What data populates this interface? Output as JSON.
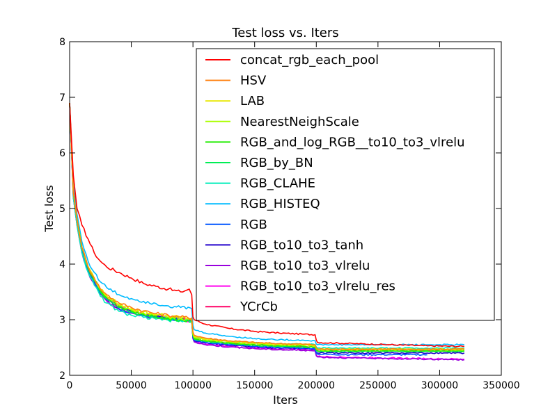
{
  "chart_data": {
    "type": "line",
    "title": "Test loss  vs. Iters",
    "xlabel": "Iters",
    "ylabel": "Test loss",
    "xlim": [
      0,
      350000
    ],
    "ylim": [
      2,
      8
    ],
    "xticks": [
      0,
      50000,
      100000,
      150000,
      200000,
      250000,
      300000,
      350000
    ],
    "yticks": [
      2,
      3,
      4,
      5,
      6,
      7,
      8
    ],
    "grid": false,
    "legend_position": "upper-right",
    "series": [
      {
        "name": "concat_rgb_each_pool",
        "color": "#ff0000",
        "x": [
          0,
          3000,
          6000,
          10000,
          15000,
          20000,
          25000,
          30000,
          40000,
          50000,
          60000,
          70000,
          80000,
          90000,
          97000,
          99000,
          100000,
          101000,
          110000,
          130000,
          150000,
          170000,
          190000,
          199000,
          200000,
          201000,
          230000,
          260000,
          290000,
          320000
        ],
        "y": [
          6.9,
          5.6,
          5.0,
          4.7,
          4.45,
          4.2,
          4.05,
          3.95,
          3.85,
          3.75,
          3.65,
          3.6,
          3.55,
          3.5,
          3.55,
          3.45,
          3.05,
          3.0,
          2.92,
          2.84,
          2.79,
          2.76,
          2.74,
          2.73,
          2.63,
          2.59,
          2.57,
          2.55,
          2.53,
          2.52
        ]
      },
      {
        "name": "HSV",
        "color": "#ff7f0e",
        "x": [
          0,
          3000,
          6000,
          10000,
          15000,
          20000,
          25000,
          30000,
          40000,
          50000,
          60000,
          70000,
          80000,
          90000,
          99000,
          100000,
          101000,
          110000,
          130000,
          150000,
          170000,
          190000,
          199000,
          200000,
          201000,
          230000,
          260000,
          290000,
          320000
        ],
        "y": [
          6.9,
          5.3,
          4.8,
          4.3,
          3.95,
          3.75,
          3.55,
          3.45,
          3.3,
          3.22,
          3.16,
          3.11,
          3.08,
          3.05,
          3.03,
          2.78,
          2.72,
          2.67,
          2.62,
          2.59,
          2.57,
          2.56,
          2.55,
          2.49,
          2.47,
          2.47,
          2.47,
          2.47,
          2.47
        ]
      },
      {
        "name": "LAB",
        "color": "#e8e800",
        "x": [
          0,
          3000,
          6000,
          10000,
          15000,
          20000,
          25000,
          30000,
          40000,
          50000,
          60000,
          70000,
          80000,
          90000,
          99000,
          100000,
          101000,
          110000,
          130000,
          150000,
          170000,
          190000,
          199000,
          200000,
          201000,
          230000,
          260000,
          290000,
          320000
        ],
        "y": [
          6.9,
          5.3,
          4.8,
          4.3,
          3.95,
          3.75,
          3.55,
          3.43,
          3.28,
          3.2,
          3.14,
          3.1,
          3.07,
          3.04,
          3.02,
          2.76,
          2.7,
          2.65,
          2.61,
          2.58,
          2.56,
          2.55,
          2.54,
          2.49,
          2.47,
          2.47,
          2.47,
          2.47,
          2.47
        ]
      },
      {
        "name": "NearestNeighScale",
        "color": "#aaff00",
        "x": [
          0,
          3000,
          6000,
          10000,
          15000,
          20000,
          25000,
          30000,
          40000,
          50000,
          60000,
          70000,
          80000,
          90000,
          99000,
          100000,
          101000,
          110000,
          130000,
          150000,
          170000,
          190000,
          199000,
          200000,
          201000,
          230000,
          260000,
          290000,
          320000
        ],
        "y": [
          6.9,
          5.3,
          4.8,
          4.3,
          3.95,
          3.74,
          3.54,
          3.42,
          3.26,
          3.18,
          3.12,
          3.08,
          3.05,
          3.02,
          3.0,
          2.74,
          2.68,
          2.64,
          2.6,
          2.57,
          2.55,
          2.54,
          2.53,
          2.48,
          2.46,
          2.46,
          2.46,
          2.46,
          2.46
        ]
      },
      {
        "name": "RGB_and_log_RGB__to10_to3_vlrelu",
        "color": "#22ee00",
        "x": [
          0,
          3000,
          6000,
          10000,
          15000,
          20000,
          25000,
          30000,
          40000,
          50000,
          60000,
          70000,
          80000,
          90000,
          99000,
          100000,
          101000,
          110000,
          130000,
          150000,
          170000,
          190000,
          199000,
          200000,
          201000,
          230000,
          260000,
          290000,
          320000
        ],
        "y": [
          6.9,
          5.3,
          4.8,
          4.3,
          3.93,
          3.72,
          3.52,
          3.4,
          3.24,
          3.16,
          3.1,
          3.06,
          3.03,
          3.0,
          2.98,
          2.72,
          2.66,
          2.62,
          2.58,
          2.55,
          2.53,
          2.52,
          2.51,
          2.46,
          2.44,
          2.44,
          2.44,
          2.44,
          2.44
        ]
      },
      {
        "name": "RGB_by_BN",
        "color": "#00ee55",
        "x": [
          0,
          3000,
          6000,
          10000,
          15000,
          20000,
          25000,
          30000,
          40000,
          50000,
          60000,
          70000,
          80000,
          90000,
          99000,
          100000,
          101000,
          110000,
          130000,
          150000,
          170000,
          190000,
          199000,
          200000,
          201000,
          230000,
          260000,
          290000,
          320000
        ],
        "y": [
          6.9,
          5.3,
          4.8,
          4.3,
          3.92,
          3.7,
          3.5,
          3.38,
          3.22,
          3.14,
          3.08,
          3.04,
          3.01,
          2.99,
          2.97,
          2.71,
          2.65,
          2.61,
          2.57,
          2.54,
          2.52,
          2.51,
          2.5,
          2.45,
          2.43,
          2.43,
          2.43,
          2.43,
          2.43
        ]
      },
      {
        "name": "RGB_CLAHE",
        "color": "#00eebb",
        "x": [
          0,
          3000,
          6000,
          10000,
          15000,
          20000,
          25000,
          30000,
          40000,
          50000,
          60000,
          70000,
          80000,
          90000,
          99000,
          100000,
          101000,
          110000,
          130000,
          150000,
          170000,
          190000,
          199000,
          200000,
          201000,
          230000,
          260000,
          290000,
          320000
        ],
        "y": [
          6.9,
          5.2,
          4.7,
          4.2,
          3.85,
          3.62,
          3.42,
          3.3,
          3.15,
          3.08,
          3.04,
          3.01,
          2.99,
          2.98,
          2.97,
          2.75,
          2.69,
          2.65,
          2.61,
          2.58,
          2.57,
          2.56,
          2.55,
          2.51,
          2.49,
          2.49,
          2.49,
          2.49,
          2.49
        ]
      },
      {
        "name": "RGB_HISTEQ",
        "color": "#00bbff",
        "x": [
          0,
          3000,
          6000,
          10000,
          15000,
          20000,
          25000,
          30000,
          40000,
          50000,
          60000,
          70000,
          80000,
          90000,
          99000,
          100000,
          101000,
          110000,
          130000,
          150000,
          170000,
          190000,
          199000,
          200000,
          201000,
          230000,
          260000,
          290000,
          320000
        ],
        "y": [
          6.9,
          5.4,
          4.9,
          4.4,
          4.05,
          3.85,
          3.68,
          3.58,
          3.45,
          3.38,
          3.33,
          3.29,
          3.25,
          3.22,
          3.2,
          2.9,
          2.82,
          2.76,
          2.7,
          2.66,
          2.64,
          2.63,
          2.62,
          2.56,
          2.55,
          2.55,
          2.55,
          2.55,
          2.55
        ]
      },
      {
        "name": "RGB",
        "color": "#0055ff",
        "x": [
          0,
          3000,
          6000,
          10000,
          15000,
          20000,
          25000,
          30000,
          40000,
          50000,
          60000,
          70000,
          80000,
          90000,
          99000,
          100000,
          101000,
          110000,
          130000,
          150000,
          170000,
          190000,
          199000,
          200000,
          201000,
          230000,
          260000,
          290000
        ],
        "y": [
          6.9,
          5.25,
          4.75,
          4.25,
          3.88,
          3.66,
          3.48,
          3.36,
          3.2,
          3.13,
          3.08,
          3.05,
          3.02,
          3.0,
          2.98,
          2.68,
          2.63,
          2.59,
          2.55,
          2.52,
          2.5,
          2.49,
          2.48,
          2.4,
          2.38,
          2.37,
          2.37,
          2.37
        ]
      },
      {
        "name": "RGB_to10_to3_tanh",
        "color": "#2200cc",
        "x": [
          0,
          3000,
          6000,
          10000,
          15000,
          20000,
          25000,
          30000,
          40000,
          50000,
          60000,
          70000,
          80000,
          90000,
          99000,
          100000,
          101000,
          110000,
          130000,
          150000,
          170000,
          190000,
          199000,
          200000,
          201000,
          230000,
          260000,
          290000,
          320000
        ],
        "y": [
          6.9,
          5.25,
          4.75,
          4.25,
          3.9,
          3.68,
          3.5,
          3.38,
          3.22,
          3.14,
          3.09,
          3.05,
          3.02,
          3.0,
          2.98,
          2.68,
          2.62,
          2.58,
          2.54,
          2.51,
          2.49,
          2.48,
          2.47,
          2.41,
          2.4,
          2.4,
          2.4,
          2.4,
          2.4
        ]
      },
      {
        "name": "RGB_to10_to3_vlrelu",
        "color": "#9900dd",
        "x": [
          0,
          3000,
          6000,
          10000,
          15000,
          20000,
          25000,
          30000,
          40000,
          50000,
          60000,
          70000,
          80000,
          90000,
          99000,
          100000,
          101000,
          110000,
          130000,
          150000,
          170000,
          190000,
          199000,
          200000,
          201000,
          230000,
          260000,
          290000,
          320000
        ],
        "y": [
          6.9,
          5.2,
          4.7,
          4.2,
          3.85,
          3.64,
          3.46,
          3.34,
          3.19,
          3.12,
          3.07,
          3.04,
          3.02,
          3.0,
          2.98,
          2.66,
          2.6,
          2.55,
          2.51,
          2.48,
          2.46,
          2.45,
          2.44,
          2.35,
          2.33,
          2.31,
          2.3,
          2.29,
          2.28
        ]
      },
      {
        "name": "RGB_to10_to3_vlrelu_res",
        "color": "#ff00ee",
        "x": [
          0,
          3000,
          6000,
          10000,
          15000,
          20000,
          25000,
          30000,
          40000,
          50000,
          60000,
          70000,
          80000,
          90000,
          99000,
          100000,
          101000,
          110000,
          130000,
          150000,
          170000,
          190000,
          199000,
          200000,
          201000,
          230000,
          260000,
          290000,
          320000
        ],
        "y": [
          6.9,
          5.2,
          4.7,
          4.2,
          3.85,
          3.64,
          3.46,
          3.34,
          3.19,
          3.12,
          3.07,
          3.04,
          3.02,
          3.0,
          2.98,
          2.67,
          2.61,
          2.56,
          2.52,
          2.49,
          2.47,
          2.46,
          2.45,
          2.36,
          2.34,
          2.32,
          2.31,
          2.3,
          2.29
        ]
      },
      {
        "name": "YCrCb",
        "color": "#ff0066",
        "x": [
          0,
          3000,
          6000,
          10000,
          15000,
          20000,
          25000,
          30000,
          40000,
          50000,
          60000,
          70000,
          80000,
          90000,
          99000,
          100000,
          101000,
          110000,
          130000,
          150000,
          170000,
          190000,
          199000,
          200000,
          201000,
          230000,
          260000,
          290000,
          320000
        ],
        "y": [
          6.9,
          5.3,
          4.8,
          4.3,
          3.93,
          3.71,
          3.51,
          3.39,
          3.23,
          3.15,
          3.1,
          3.06,
          3.04,
          3.02,
          3.0,
          2.72,
          2.66,
          2.62,
          2.58,
          2.55,
          2.53,
          2.52,
          2.51,
          2.46,
          2.44,
          2.44,
          2.44,
          2.44,
          2.44
        ]
      }
    ]
  }
}
